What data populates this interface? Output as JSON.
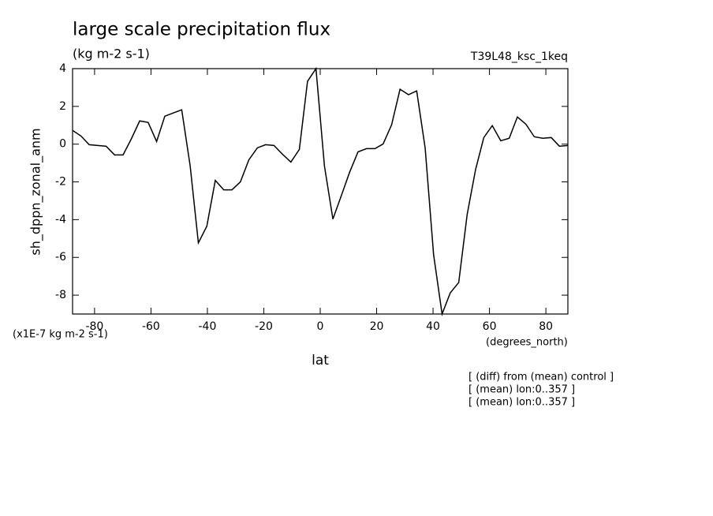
{
  "chart_data": {
    "type": "line",
    "title": "large scale precipitation flux",
    "subtitle": "(kg m-2 s-1)",
    "dataset": "T39L48_ksc_1keq",
    "y_label": "sh_dppn_zonal_anm",
    "x_label": "lat",
    "y_units": "(x1E-7 kg m-2 s-1)",
    "x_units": "(degrees_north)",
    "notes": [
      "[ (diff) from (mean) control ]",
      "[ (mean) lon:0..357 ]",
      "[ (mean) lon:0..357 ]"
    ],
    "x": [
      -87.8,
      -84.8,
      -81.9,
      -78.9,
      -75.9,
      -72.9,
      -69.9,
      -67.0,
      -64.0,
      -61.0,
      -58.0,
      -55.1,
      -52.1,
      -49.1,
      -46.1,
      -43.2,
      -40.2,
      -37.2,
      -34.2,
      -31.3,
      -28.3,
      -25.3,
      -22.3,
      -19.4,
      -16.4,
      -13.4,
      -10.4,
      -7.4,
      -4.5,
      -1.5,
      1.5,
      4.5,
      7.4,
      10.4,
      13.4,
      16.4,
      19.4,
      22.3,
      25.3,
      28.3,
      31.3,
      34.2,
      37.2,
      40.2,
      43.2,
      46.1,
      49.1,
      52.1,
      55.1,
      58.0,
      61.0,
      64.0,
      67.0,
      69.9,
      72.9,
      75.9,
      78.9,
      81.9,
      84.8,
      87.8
    ],
    "series": [
      {
        "color": "#000000",
        "values": [
          0.73,
          0.43,
          -0.03,
          -0.07,
          -0.11,
          -0.57,
          -0.57,
          0.27,
          1.23,
          1.15,
          0.14,
          1.48,
          1.65,
          1.82,
          -1.16,
          -5.23,
          -4.35,
          -1.92,
          -2.42,
          -2.42,
          -2.0,
          -0.83,
          -0.2,
          -0.03,
          -0.07,
          -0.53,
          -0.95,
          -0.28,
          3.33,
          4.0,
          -1.16,
          -3.97,
          -2.76,
          -1.5,
          -0.41,
          -0.24,
          -0.24,
          0.01,
          1.02,
          2.91,
          2.62,
          2.82,
          -0.2,
          -5.86,
          -9.0,
          -7.88,
          -7.33,
          -3.72,
          -1.33,
          0.35,
          0.98,
          0.18,
          0.31,
          1.44,
          1.06,
          0.39,
          0.31,
          0.35,
          -0.11,
          -0.07
        ]
      }
    ],
    "xlim": [
      -87.8,
      87.8
    ],
    "ylim": [
      -9,
      4
    ],
    "xticks": [
      -80,
      -60,
      -40,
      -20,
      0,
      20,
      40,
      60,
      80
    ],
    "yticks": [
      4,
      2,
      0,
      -2,
      -4,
      -6,
      -8
    ],
    "grid": false
  }
}
